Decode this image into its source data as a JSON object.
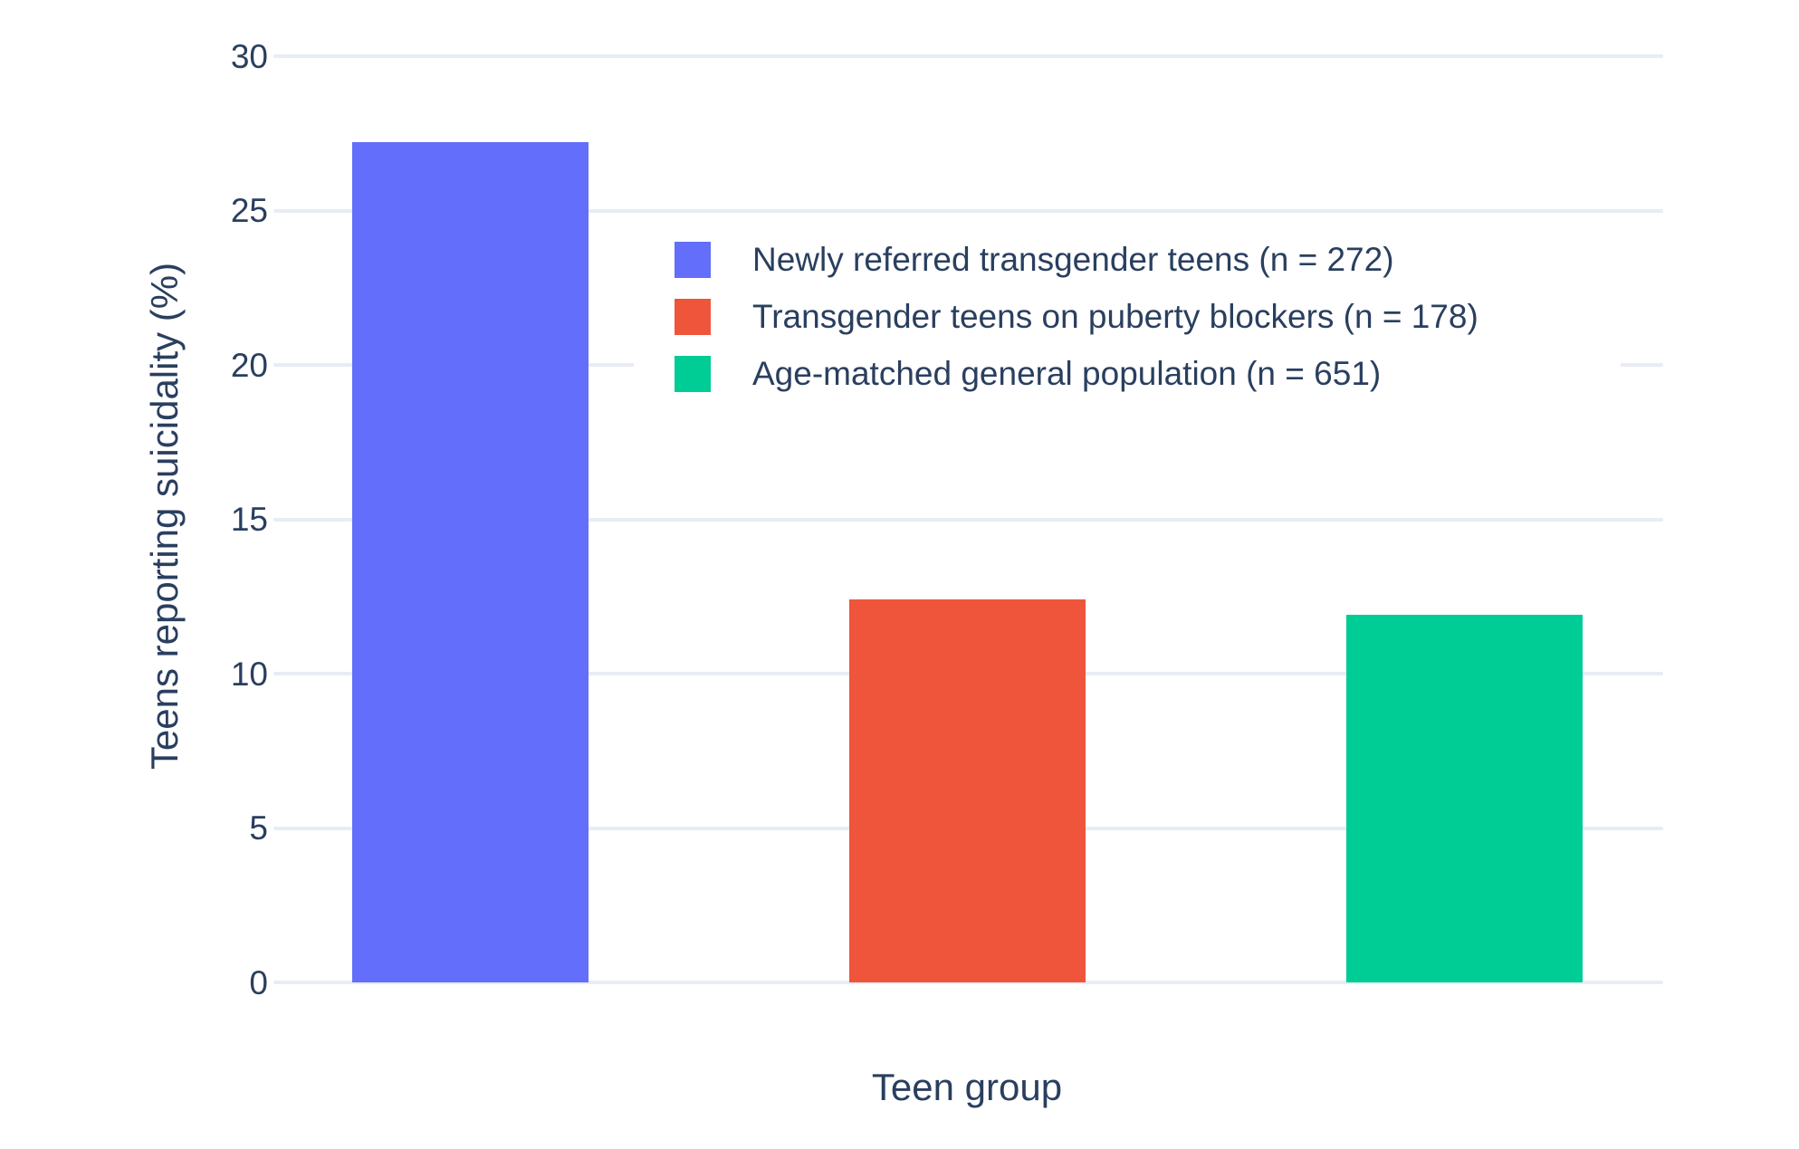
{
  "chart_data": {
    "type": "bar",
    "title": "",
    "xlabel": "Teen group",
    "ylabel": "Teens reporting suicidality (%)",
    "categories": [
      "Newly referred transgender teens",
      "Transgender teens on puberty blockers",
      "Age-matched general population"
    ],
    "values": [
      27.2,
      12.4,
      11.9
    ],
    "colors": [
      "#636EFA",
      "#EF553B",
      "#00CC96"
    ],
    "ylim": [
      0,
      30
    ],
    "yticks": [
      0,
      5,
      10,
      15,
      20,
      25,
      30
    ],
    "grid": true,
    "gridcolor": "#E8ECF4",
    "text_color": "#2a3f5f",
    "background": "#FFFFFF",
    "legend": {
      "position": "inside-top-right",
      "entries": [
        {
          "label": "Newly referred transgender teens (n = 272)",
          "color": "#636EFA"
        },
        {
          "label": "Transgender teens on puberty blockers (n = 178)",
          "color": "#EF553B"
        },
        {
          "label": "Age-matched general population (n = 651)",
          "color": "#00CC96"
        }
      ]
    }
  }
}
